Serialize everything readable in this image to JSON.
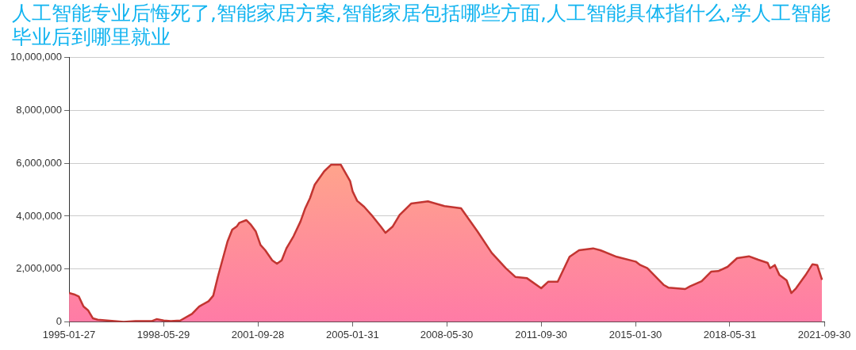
{
  "chart_data": {
    "type": "area",
    "title": "人工智能专业后悔死了,智能家居方案,智能家居包括哪些方面,人工智能具体指什么,学人工智能毕业后到哪里就业",
    "x": [
      "1995-01-27",
      "1995-04",
      "1995-06",
      "1995-08",
      "1995-10",
      "1995-12",
      "1996-02",
      "1996-06",
      "1996-09",
      "1997-01",
      "1997-06",
      "1997-09",
      "1998-01",
      "1998-03",
      "1998-06",
      "1998-09",
      "1999-01",
      "1999-06",
      "1999-09",
      "2000-01",
      "2000-03",
      "2000-05",
      "2000-09",
      "2000-11",
      "2001-01",
      "2001-02",
      "2001-05",
      "2001-07",
      "2001-09",
      "2001-11",
      "2002-01",
      "2002-04",
      "2002-06",
      "2002-08",
      "2002-10",
      "2003-01",
      "2003-04",
      "2003-06",
      "2003-08",
      "2003-10",
      "2004-02",
      "2004-05",
      "2004-09",
      "2005-01",
      "2005-02",
      "2005-04",
      "2005-07",
      "2005-10",
      "2006-02",
      "2006-04",
      "2006-07",
      "2006-10",
      "2007-03",
      "2007-10",
      "2008-05",
      "2008-12",
      "2009-07",
      "2010-01",
      "2010-07",
      "2010-11",
      "2011-04",
      "2011-10",
      "2012-01",
      "2012-05",
      "2012-10",
      "2013-02",
      "2013-08",
      "2013-11",
      "2014-06",
      "2015-02",
      "2015-04",
      "2015-07",
      "2016-02",
      "2016-04",
      "2016-11",
      "2017-01",
      "2017-06",
      "2017-10",
      "2018-01",
      "2018-05",
      "2018-09",
      "2019-02",
      "2019-06",
      "2019-10",
      "2019-11",
      "2020-01",
      "2020-03",
      "2020-06",
      "2020-08",
      "2020-10",
      "2021-02",
      "2021-05",
      "2021-07",
      "2021-09"
    ],
    "series": [
      {
        "color": "#c23531",
        "values": [
          1090000,
          1040000,
          960000,
          580000,
          430000,
          130000,
          80000,
          50000,
          30000,
          0,
          30000,
          30000,
          30000,
          100000,
          50000,
          30000,
          50000,
          300000,
          580000,
          780000,
          990000,
          1720000,
          3040000,
          3490000,
          3620000,
          3750000,
          3850000,
          3670000,
          3420000,
          2910000,
          2710000,
          2330000,
          2200000,
          2330000,
          2780000,
          3240000,
          3800000,
          4300000,
          4680000,
          5190000,
          5700000,
          5950000,
          5950000,
          5320000,
          4940000,
          4580000,
          4350000,
          4050000,
          3600000,
          3370000,
          3600000,
          4050000,
          4480000,
          4560000,
          4380000,
          4300000,
          3420000,
          2610000,
          2030000,
          1700000,
          1650000,
          1270000,
          1520000,
          1520000,
          2460000,
          2710000,
          2780000,
          2710000,
          2460000,
          2280000,
          2150000,
          2030000,
          1390000,
          1290000,
          1240000,
          1340000,
          1540000,
          1900000,
          1920000,
          2080000,
          2410000,
          2480000,
          2350000,
          2230000,
          2030000,
          2150000,
          1770000,
          1570000,
          1090000,
          1270000,
          1770000,
          2180000,
          2150000,
          1590000
        ]
      }
    ],
    "xlim": [
      "1995-01-27",
      "2021-09-30"
    ],
    "xticks": [
      "1995-01-27",
      "1998-05-29",
      "2001-09-28",
      "2005-01-31",
      "2008-05-30",
      "2011-09-30",
      "2015-01-30",
      "2018-05-31",
      "2021-09-30"
    ],
    "ylim": [
      0,
      10000000
    ],
    "yticks": [
      0,
      {
        "value": 2000000,
        "label": "2,000,000"
      },
      {
        "value": 4000000,
        "label": "4,000,000"
      },
      {
        "value": 6000000,
        "label": "6,000,000"
      },
      {
        "value": 8000000,
        "label": "8,000,000"
      },
      {
        "value": 10000000,
        "label": "10,000,000"
      }
    ],
    "grid": "y",
    "legend": false,
    "marker": "none",
    "line_style": "solid"
  }
}
